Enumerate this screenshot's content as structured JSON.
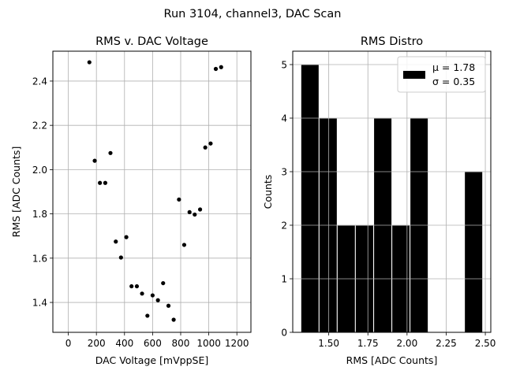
{
  "suptitle": "Run 3104, channel3, DAC Scan",
  "chart_data": [
    {
      "type": "scatter",
      "title": "RMS v. DAC Voltage",
      "xlabel": "DAC Voltage [mVppSE]",
      "ylabel": "RMS [ADC Counts]",
      "xlim": [
        -110,
        1300
      ],
      "ylim": [
        1.265,
        2.535
      ],
      "xticks": [
        0,
        200,
        400,
        600,
        800,
        1000,
        1200
      ],
      "yticks": [
        1.4,
        1.6,
        1.8,
        2.0,
        2.2,
        2.4
      ],
      "ytick_labels": [
        "1.4",
        "1.6",
        "1.8",
        "2.0",
        "2.2",
        "2.4"
      ],
      "grid": true,
      "marker_color": "#000000",
      "points": [
        {
          "x": 150,
          "y": 2.485
        },
        {
          "x": 188,
          "y": 2.04
        },
        {
          "x": 225,
          "y": 1.94
        },
        {
          "x": 263,
          "y": 1.94
        },
        {
          "x": 300,
          "y": 2.075
        },
        {
          "x": 338,
          "y": 1.675
        },
        {
          "x": 375,
          "y": 1.603
        },
        {
          "x": 413,
          "y": 1.695
        },
        {
          "x": 450,
          "y": 1.473
        },
        {
          "x": 488,
          "y": 1.473
        },
        {
          "x": 525,
          "y": 1.44
        },
        {
          "x": 563,
          "y": 1.34
        },
        {
          "x": 600,
          "y": 1.432
        },
        {
          "x": 638,
          "y": 1.41
        },
        {
          "x": 675,
          "y": 1.487
        },
        {
          "x": 713,
          "y": 1.385
        },
        {
          "x": 750,
          "y": 1.322
        },
        {
          "x": 788,
          "y": 1.865
        },
        {
          "x": 825,
          "y": 1.66
        },
        {
          "x": 863,
          "y": 1.808
        },
        {
          "x": 900,
          "y": 1.797
        },
        {
          "x": 938,
          "y": 1.82
        },
        {
          "x": 975,
          "y": 2.1
        },
        {
          "x": 1013,
          "y": 2.118
        },
        {
          "x": 1050,
          "y": 2.455
        },
        {
          "x": 1088,
          "y": 2.463
        }
      ]
    },
    {
      "type": "bar",
      "title": "RMS Distro",
      "xlabel": "RMS [ADC Counts]",
      "ylabel": "Counts",
      "xlim": [
        1.27,
        2.535
      ],
      "ylim": [
        0,
        5.25
      ],
      "xticks": [
        1.5,
        1.75,
        2.0,
        2.25,
        2.5
      ],
      "xtick_labels": [
        "1.50",
        "1.75",
        "2.00",
        "2.25",
        "2.50"
      ],
      "yticks": [
        0,
        1,
        2,
        3,
        4,
        5
      ],
      "ytick_labels": [
        "0",
        "1",
        "2",
        "3",
        "4",
        "5"
      ],
      "grid": true,
      "bar_color": "#000000",
      "bins": [
        {
          "x0": 1.322,
          "x1": 1.438,
          "count": 5
        },
        {
          "x0": 1.438,
          "x1": 1.554,
          "count": 4
        },
        {
          "x0": 1.554,
          "x1": 1.67,
          "count": 2
        },
        {
          "x0": 1.67,
          "x1": 1.787,
          "count": 2
        },
        {
          "x0": 1.787,
          "x1": 1.903,
          "count": 4
        },
        {
          "x0": 1.903,
          "x1": 2.019,
          "count": 2
        },
        {
          "x0": 2.019,
          "x1": 2.135,
          "count": 4
        },
        {
          "x0": 2.135,
          "x1": 2.251,
          "count": 0
        },
        {
          "x0": 2.251,
          "x1": 2.367,
          "count": 0
        },
        {
          "x0": 2.367,
          "x1": 2.483,
          "count": 3
        }
      ],
      "legend": {
        "placement": "upper-right",
        "mu_label": "μ = 1.78",
        "sigma_label": "σ = 0.35"
      }
    }
  ]
}
